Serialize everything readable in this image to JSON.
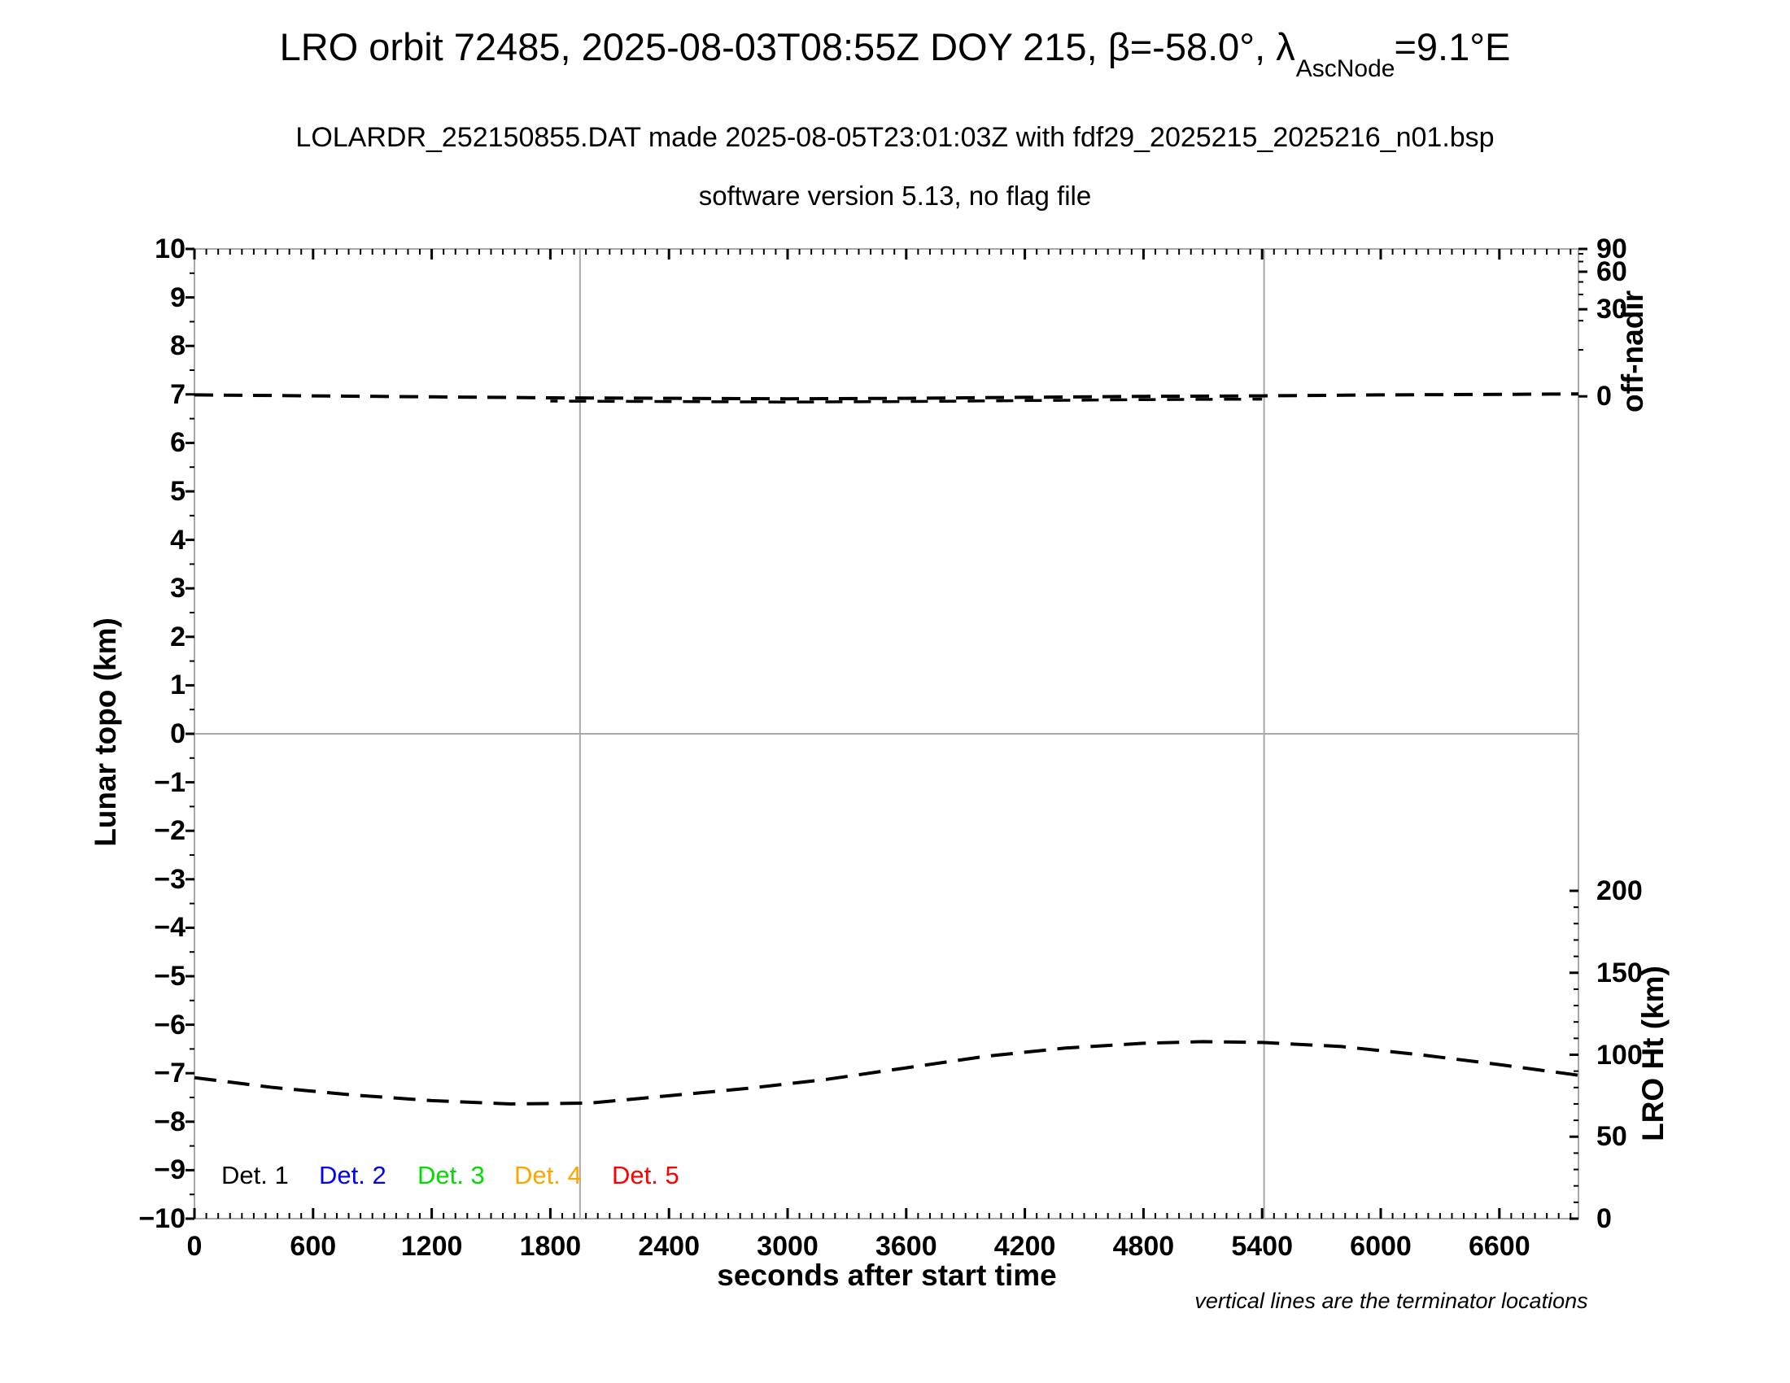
{
  "figure": {
    "title": {
      "prefix": "LRO orbit 72485, 2025-08-03T08:55Z DOY 215, β=-58.0°, λ",
      "subscript": "AscNode",
      "suffix": "=9.1°E"
    },
    "subtitle1": "LOLARDR_252150855.DAT made 2025-08-05T23:01:03Z with fdf29_2025215_2025216_n01.bsp",
    "subtitle2": "software version 5.13, no flag file",
    "footnote": "vertical lines are the terminator locations"
  },
  "legend": {
    "items": [
      {
        "label": "Det. 1",
        "color": "#000000"
      },
      {
        "label": "Det. 2",
        "color": "#0000ff"
      },
      {
        "label": "Det. 3",
        "color": "#00dd00"
      },
      {
        "label": "Det. 4",
        "color": "#ffa500"
      },
      {
        "label": "Det. 5",
        "color": "#ff0000"
      }
    ]
  },
  "chart_data": {
    "type": "line",
    "title": "LRO orbit 72485, 2025-08-03T08:55Z DOY 215, beta=-58.0 deg, lambda_AscNode=9.1E",
    "xlabel": "seconds after start time",
    "ylabel_left": "Lunar topo (km)",
    "ylabel_right_upper": "off-nadir",
    "ylabel_right_lower": "LRO Ht (km)",
    "xlim": [
      0,
      7000
    ],
    "ylim_left": [
      -10,
      10
    ],
    "x_major_ticks": [
      0,
      600,
      1200,
      1800,
      2400,
      3000,
      3600,
      4200,
      4800,
      5400,
      6000,
      6600
    ],
    "x_minor_step_s": 60,
    "left_ticks": [
      10,
      9,
      8,
      7,
      6,
      5,
      4,
      3,
      2,
      1,
      0,
      -1,
      -2,
      -3,
      -4,
      -5,
      -6,
      -7,
      -8,
      -9,
      -10
    ],
    "left_minor_step_km": 0.5,
    "off_nadir_ticks": [
      90,
      60,
      30,
      0
    ],
    "lro_ht_ticks": [
      200,
      150,
      100,
      50,
      0
    ],
    "lro_ht_minor_step_km": 10,
    "terminator_times_s": [
      1950,
      5410
    ],
    "zero_gridline_km": 0,
    "grid": "horizontal zero line and two vertical terminator lines only",
    "legend_position": "inside lower left",
    "line_color": "#000000",
    "frame_color": "#a9a9a9",
    "series": [
      {
        "name": "spacecraft off-nadir angle",
        "style": "dashed",
        "axis": "right-upper (deg, nonlinear)",
        "note": "nearly flat line sitting just above the 0 deg tick (approx 1-3 deg off-nadir)",
        "x": [
          0,
          600,
          1200,
          1800,
          2400,
          3000,
          3600,
          4200,
          4800,
          5400,
          6000,
          6600,
          7000
        ],
        "y_left_equiv_km": [
          6.99,
          6.97,
          6.95,
          6.93,
          6.92,
          6.91,
          6.92,
          6.94,
          6.96,
          6.97,
          6.99,
          7.0,
          7.01
        ]
      },
      {
        "name": "LRO height above surface",
        "style": "dashed",
        "axis": "right-lower (km)",
        "x": [
          0,
          400,
          800,
          1200,
          1600,
          2000,
          2400,
          2800,
          3200,
          3600,
          4000,
          4400,
          4800,
          5100,
          5400,
          5800,
          6200,
          6600,
          7000
        ],
        "h_km": [
          86,
          80,
          75.5,
          72,
          70,
          70.5,
          75,
          79.5,
          85,
          92,
          99,
          104,
          107,
          108,
          107.5,
          105,
          100,
          94,
          87.5
        ]
      }
    ]
  }
}
